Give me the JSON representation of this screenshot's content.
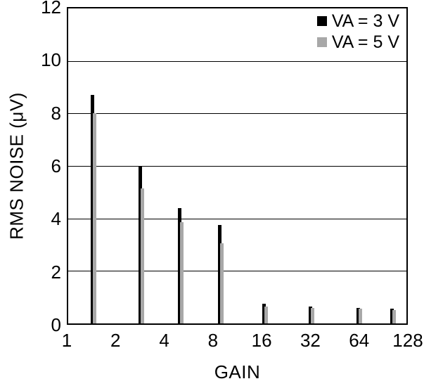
{
  "chart_data": {
    "type": "bar",
    "title": "",
    "xlabel": "GAIN",
    "ylabel": "RMS NOISE (μV)",
    "categories": [
      "1",
      "2",
      "4",
      "8",
      "16",
      "32",
      "64",
      "128"
    ],
    "x_scale": "log2",
    "ylim": [
      0,
      12
    ],
    "yticks": [
      0,
      2,
      4,
      6,
      8,
      10,
      12
    ],
    "grid": "horizontal",
    "legend_position": "top-right-inside",
    "series": [
      {
        "name": "VA = 3 V",
        "color": "#000000",
        "values": [
          8.7,
          6.0,
          4.4,
          3.75,
          0.75,
          0.65,
          0.6,
          0.55
        ]
      },
      {
        "name": "VA = 5 V",
        "color": "#a8a8a8",
        "values": [
          8.0,
          5.15,
          3.85,
          3.05,
          0.65,
          0.6,
          0.55,
          0.5
        ]
      }
    ]
  }
}
